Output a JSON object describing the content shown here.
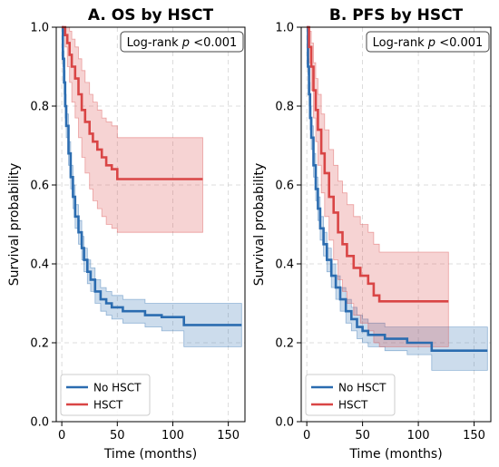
{
  "chart_data": [
    {
      "type": "line",
      "title": "A. OS by HSCT",
      "xlabel": "Time (months)",
      "ylabel": "Survival probability",
      "xlim": [
        -5,
        165
      ],
      "ylim": [
        0,
        1.0
      ],
      "xticks": [
        0,
        50,
        100,
        150
      ],
      "yticks": [
        0.0,
        0.2,
        0.4,
        0.6,
        0.8,
        1.0
      ],
      "grid": true,
      "legend": "bottom-left",
      "annotation": {
        "prefix": "Log-rank ",
        "p": "p",
        "suffix": " <0.001"
      },
      "series": [
        {
          "name": "No HSCT",
          "color": "#2b6cb0",
          "x": [
            0,
            1,
            2,
            3,
            4,
            6,
            8,
            10,
            12,
            15,
            18,
            20,
            23,
            26,
            30,
            35,
            40,
            45,
            55,
            75,
            90,
            110,
            162
          ],
          "y": [
            1.0,
            0.92,
            0.86,
            0.8,
            0.75,
            0.68,
            0.62,
            0.57,
            0.52,
            0.48,
            0.44,
            0.41,
            0.38,
            0.36,
            0.33,
            0.31,
            0.3,
            0.29,
            0.28,
            0.27,
            0.265,
            0.245,
            0.245
          ],
          "lower": [
            1.0,
            0.9,
            0.83,
            0.77,
            0.72,
            0.65,
            0.59,
            0.54,
            0.49,
            0.45,
            0.41,
            0.38,
            0.35,
            0.33,
            0.3,
            0.28,
            0.27,
            0.26,
            0.25,
            0.24,
            0.23,
            0.19,
            0.19
          ],
          "upper": [
            1.0,
            0.94,
            0.89,
            0.83,
            0.78,
            0.71,
            0.65,
            0.6,
            0.55,
            0.51,
            0.47,
            0.44,
            0.41,
            0.39,
            0.36,
            0.34,
            0.33,
            0.32,
            0.31,
            0.3,
            0.3,
            0.3,
            0.3
          ]
        },
        {
          "name": "HSCT",
          "color": "#d94545",
          "x": [
            0,
            3,
            5,
            7,
            9,
            12,
            15,
            18,
            21,
            25,
            28,
            32,
            36,
            40,
            45,
            50,
            127
          ],
          "y": [
            1.0,
            0.98,
            0.96,
            0.93,
            0.9,
            0.87,
            0.83,
            0.79,
            0.76,
            0.73,
            0.71,
            0.69,
            0.67,
            0.65,
            0.64,
            0.615,
            0.615
          ],
          "lower": [
            1.0,
            0.95,
            0.9,
            0.86,
            0.81,
            0.77,
            0.72,
            0.67,
            0.63,
            0.59,
            0.56,
            0.54,
            0.52,
            0.5,
            0.49,
            0.48,
            0.48
          ],
          "upper": [
            1.0,
            1.0,
            1.0,
            0.99,
            0.97,
            0.95,
            0.92,
            0.89,
            0.86,
            0.83,
            0.81,
            0.79,
            0.77,
            0.76,
            0.75,
            0.72,
            0.72
          ]
        }
      ]
    },
    {
      "type": "line",
      "title": "B. PFS by HSCT",
      "xlabel": "Time (months)",
      "ylabel": "Survival probability",
      "xlim": [
        -5,
        165
      ],
      "ylim": [
        0,
        1.0
      ],
      "xticks": [
        0,
        50,
        100,
        150
      ],
      "yticks": [
        0.0,
        0.2,
        0.4,
        0.6,
        0.8,
        1.0
      ],
      "grid": true,
      "legend": "bottom-left",
      "annotation": {
        "prefix": "Log-rank ",
        "p": "p",
        "suffix": " <0.001"
      },
      "series": [
        {
          "name": "No HSCT",
          "color": "#2b6cb0",
          "x": [
            0,
            1,
            2,
            3,
            4,
            6,
            8,
            10,
            12,
            15,
            18,
            22,
            26,
            30,
            35,
            40,
            45,
            50,
            55,
            70,
            90,
            112,
            162
          ],
          "y": [
            1.0,
            0.9,
            0.83,
            0.77,
            0.72,
            0.65,
            0.59,
            0.54,
            0.49,
            0.45,
            0.41,
            0.37,
            0.34,
            0.31,
            0.28,
            0.26,
            0.24,
            0.23,
            0.22,
            0.21,
            0.2,
            0.18,
            0.18
          ],
          "lower": [
            1.0,
            0.88,
            0.8,
            0.74,
            0.69,
            0.62,
            0.56,
            0.51,
            0.46,
            0.42,
            0.38,
            0.34,
            0.31,
            0.28,
            0.25,
            0.23,
            0.21,
            0.2,
            0.19,
            0.18,
            0.17,
            0.13,
            0.13
          ],
          "upper": [
            1.0,
            0.92,
            0.86,
            0.8,
            0.75,
            0.68,
            0.62,
            0.57,
            0.52,
            0.48,
            0.44,
            0.4,
            0.37,
            0.34,
            0.31,
            0.29,
            0.27,
            0.26,
            0.25,
            0.24,
            0.24,
            0.24,
            0.24
          ]
        },
        {
          "name": "HSCT",
          "color": "#d94545",
          "x": [
            0,
            2,
            4,
            6,
            8,
            10,
            13,
            16,
            20,
            24,
            28,
            32,
            36,
            42,
            48,
            55,
            60,
            65,
            127
          ],
          "y": [
            1.0,
            0.95,
            0.9,
            0.84,
            0.79,
            0.74,
            0.68,
            0.63,
            0.57,
            0.53,
            0.48,
            0.45,
            0.42,
            0.39,
            0.37,
            0.35,
            0.32,
            0.305,
            0.305
          ],
          "lower": [
            1.0,
            0.91,
            0.84,
            0.77,
            0.71,
            0.65,
            0.58,
            0.52,
            0.46,
            0.41,
            0.36,
            0.33,
            0.3,
            0.27,
            0.25,
            0.23,
            0.2,
            0.19,
            0.19
          ],
          "upper": [
            1.0,
            0.99,
            0.96,
            0.91,
            0.87,
            0.83,
            0.78,
            0.74,
            0.69,
            0.65,
            0.61,
            0.58,
            0.55,
            0.52,
            0.5,
            0.48,
            0.45,
            0.43,
            0.43
          ]
        }
      ]
    }
  ]
}
